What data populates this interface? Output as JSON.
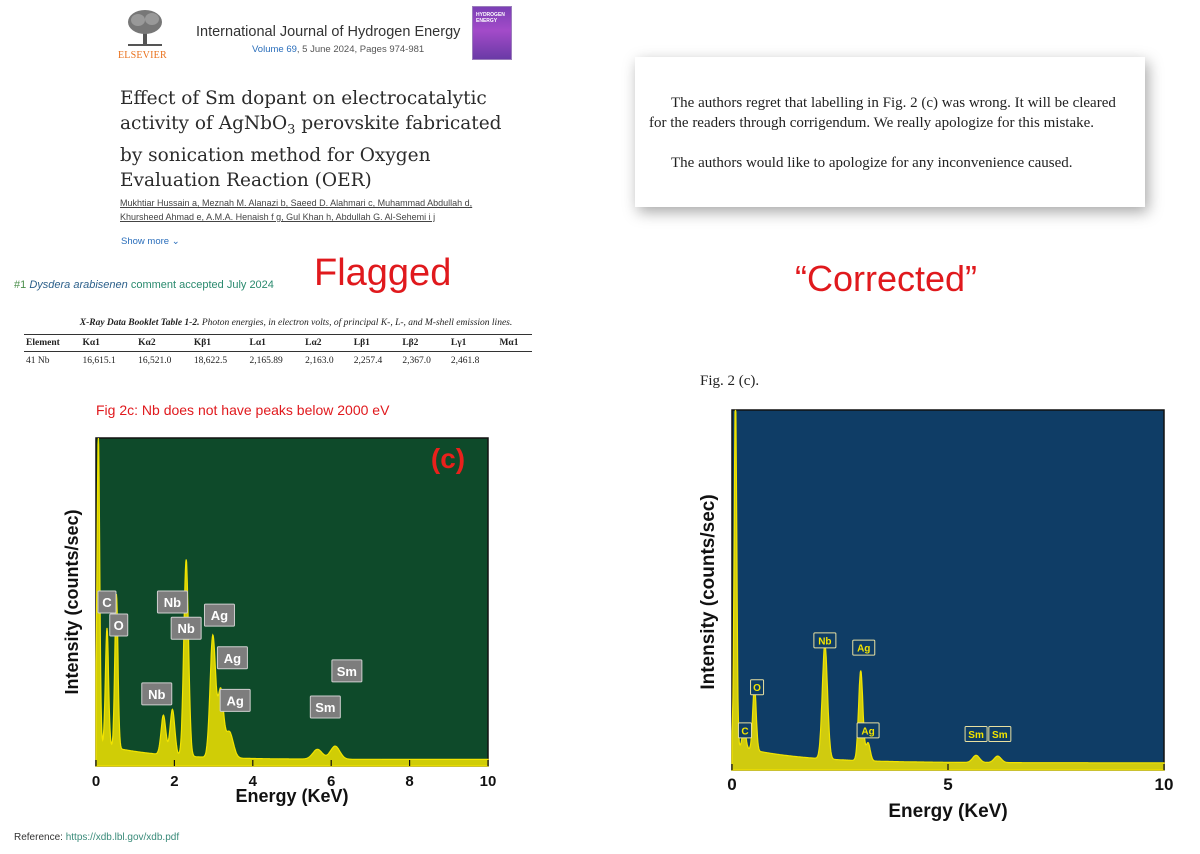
{
  "journal": {
    "publisher": "ELSEVIER",
    "name": "International Journal of Hydrogen Energy",
    "volume_link": "Volume 69",
    "volume_rest": ", 5 June 2024, Pages 974-981",
    "cover_text_1": "HYDROGEN",
    "cover_text_2": "ENERGY"
  },
  "article": {
    "title_part1": "Effect of Sm dopant on electrocatalytic activity of AgNbO",
    "title_sub": "3",
    "title_part2": " perovskite fabricated by sonication method for Oxygen Evaluation Reaction (OER)",
    "authors_line1": "Mukhtiar Hussain a, Meznah M. Alanazi b, Saeed D. Alahmari c, Muhammad Abdullah d,",
    "authors_line2": "Khursheed Ahmad e, A.M.A. Henaish f g, Gul Khan h, Abdullah G. Al-Sehemi i j",
    "show_more": "Show more"
  },
  "comment": {
    "number": "#1",
    "name": "Dysdera arabisenen",
    "text": "comment accepted July 2024"
  },
  "labels": {
    "flagged": "Flagged",
    "corrected": "“Corrected”"
  },
  "corrigendum": {
    "paragraph1": "The authors regret that labelling in Fig. 2 (c) was wrong. It will be cleared for the readers through corrigendum. We really apologize for this mistake.",
    "paragraph2": "The authors would like to apologize for any inconvenience caused."
  },
  "xray_table": {
    "caption_bold": "X-Ray Data Booklet  Table 1-2.",
    "caption_rest": " Photon energies, in electron volts, of principal K-, L-, and M-shell emission lines.",
    "headers": [
      "Element",
      "Kα1",
      "Kα2",
      "Kβ1",
      "Lα1",
      "Lα2",
      "Lβ1",
      "Lβ2",
      "Lγ1",
      "Mα1"
    ],
    "row": [
      "41  Nb",
      "16,615.1",
      "16,521.0",
      "18,622.5",
      "2,165.89",
      "2,163.0",
      "2,257.4",
      "2,367.0",
      "2,461.8",
      ""
    ]
  },
  "fig2c_note": "Fig 2c: Nb does not have peaks below 2000 eV",
  "reference": {
    "label": "Reference: ",
    "url": "https://xdb.lbl.gov/xdb.pdf"
  },
  "fig2c_caption": "Fig. 2 (c).",
  "chart_data": [
    {
      "type": "line",
      "panel_label": "(c)",
      "xlabel": "Energy (KeV)",
      "ylabel": "Intensity (counts/sec)",
      "xlim": [
        0,
        10
      ],
      "ylim": [
        0,
        1
      ],
      "xticks": [
        0,
        2,
        4,
        6,
        8,
        10
      ],
      "background": "#0e4a2a",
      "line_color": "#f2e400",
      "peaks": [
        {
          "x": 0.06,
          "y": 0.95,
          "w": 0.035
        },
        {
          "x": 0.28,
          "y": 0.36,
          "w": 0.04
        },
        {
          "x": 0.52,
          "y": 0.47,
          "w": 0.04
        },
        {
          "x": 1.72,
          "y": 0.12,
          "w": 0.06
        },
        {
          "x": 1.95,
          "y": 0.14,
          "w": 0.06
        },
        {
          "x": 2.3,
          "y": 0.6,
          "w": 0.06
        },
        {
          "x": 2.98,
          "y": 0.37,
          "w": 0.07
        },
        {
          "x": 3.18,
          "y": 0.2,
          "w": 0.07
        },
        {
          "x": 3.4,
          "y": 0.08,
          "w": 0.1
        },
        {
          "x": 5.65,
          "y": 0.03,
          "w": 0.12
        },
        {
          "x": 6.1,
          "y": 0.04,
          "w": 0.12
        }
      ],
      "annotations": [
        {
          "text": "C",
          "x": 0.28,
          "y": 0.5
        },
        {
          "text": "O",
          "x": 0.58,
          "y": 0.43
        },
        {
          "text": "Nb",
          "x": 1.95,
          "y": 0.5
        },
        {
          "text": "Nb",
          "x": 2.3,
          "y": 0.42
        },
        {
          "text": "Ag",
          "x": 3.15,
          "y": 0.46
        },
        {
          "text": "Ag",
          "x": 3.48,
          "y": 0.33
        },
        {
          "text": "Nb",
          "x": 1.55,
          "y": 0.22
        },
        {
          "text": "Ag",
          "x": 3.55,
          "y": 0.2
        },
        {
          "text": "Sm",
          "x": 6.4,
          "y": 0.29
        },
        {
          "text": "Sm",
          "x": 5.85,
          "y": 0.18
        }
      ]
    },
    {
      "type": "line",
      "xlabel": "Energy (KeV)",
      "ylabel": "Intensity (counts/sec)",
      "xlim": [
        0,
        10
      ],
      "ylim": [
        0,
        1
      ],
      "xticks": [
        0,
        5,
        10
      ],
      "background": "#0f3d66",
      "line_color": "#f2e400",
      "peaks": [
        {
          "x": 0.08,
          "y": 0.98,
          "w": 0.03
        },
        {
          "x": 0.28,
          "y": 0.06,
          "w": 0.04
        },
        {
          "x": 0.52,
          "y": 0.18,
          "w": 0.04
        },
        {
          "x": 2.15,
          "y": 0.32,
          "w": 0.06
        },
        {
          "x": 2.98,
          "y": 0.25,
          "w": 0.05
        },
        {
          "x": 3.15,
          "y": 0.05,
          "w": 0.05
        },
        {
          "x": 5.65,
          "y": 0.02,
          "w": 0.08
        },
        {
          "x": 6.15,
          "y": 0.018,
          "w": 0.08
        }
      ],
      "annotations": [
        {
          "text": "C",
          "x": 0.3,
          "y": 0.11
        },
        {
          "text": "O",
          "x": 0.58,
          "y": 0.23
        },
        {
          "text": "Nb",
          "x": 2.15,
          "y": 0.36
        },
        {
          "text": "Ag",
          "x": 3.05,
          "y": 0.34
        },
        {
          "text": "Ag",
          "x": 3.15,
          "y": 0.11
        },
        {
          "text": "Sm",
          "x": 5.65,
          "y": 0.1
        },
        {
          "text": "Sm",
          "x": 6.2,
          "y": 0.1
        }
      ]
    }
  ]
}
